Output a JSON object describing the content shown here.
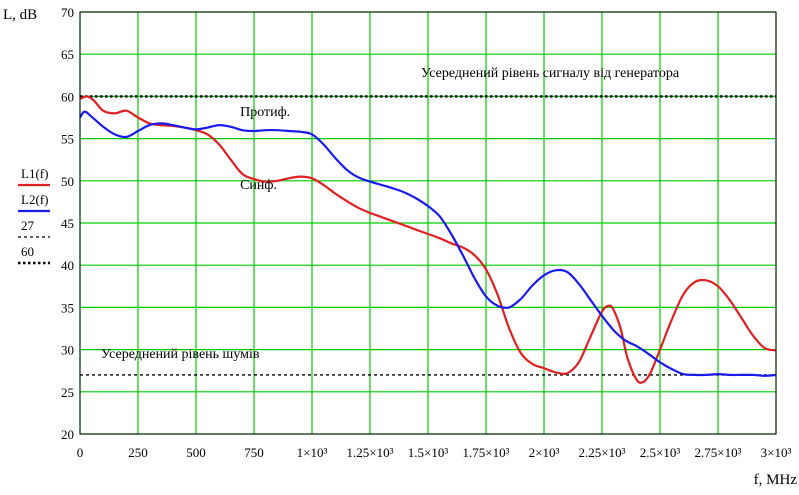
{
  "chart_data": {
    "type": "line",
    "ylabel": "L, dB",
    "xlabel": "f, MHz",
    "xlim": [
      0,
      3000
    ],
    "ylim": [
      20,
      70
    ],
    "grid": true,
    "grid_color": "#00cc00",
    "x_ticks": [
      {
        "value": 0,
        "label": "0"
      },
      {
        "value": 250,
        "label": "250"
      },
      {
        "value": 500,
        "label": "500"
      },
      {
        "value": 750,
        "label": "750"
      },
      {
        "value": 1000,
        "label": "1×10³"
      },
      {
        "value": 1250,
        "label": "1.25×10³"
      },
      {
        "value": 1500,
        "label": "1.5×10³"
      },
      {
        "value": 1750,
        "label": "1.75×10³"
      },
      {
        "value": 2000,
        "label": "2×10³"
      },
      {
        "value": 2250,
        "label": "2.25×10³"
      },
      {
        "value": 2500,
        "label": "2.5×10³"
      },
      {
        "value": 2750,
        "label": "2.75×10³"
      },
      {
        "value": 3000,
        "label": "3×10³"
      }
    ],
    "y_ticks": [
      {
        "value": 20,
        "label": "20"
      },
      {
        "value": 25,
        "label": "25"
      },
      {
        "value": 30,
        "label": "30"
      },
      {
        "value": 35,
        "label": "35"
      },
      {
        "value": 40,
        "label": "40"
      },
      {
        "value": 45,
        "label": "45"
      },
      {
        "value": 50,
        "label": "50"
      },
      {
        "value": 55,
        "label": "55"
      },
      {
        "value": 60,
        "label": "60"
      },
      {
        "value": 65,
        "label": "65"
      },
      {
        "value": 70,
        "label": "70"
      }
    ],
    "series": [
      {
        "name": "L1(f)",
        "color": "#e02020",
        "style": "solid",
        "x": [
          0,
          30,
          60,
          100,
          150,
          200,
          250,
          300,
          350,
          400,
          450,
          500,
          550,
          600,
          650,
          700,
          750,
          800,
          850,
          900,
          950,
          1000,
          1050,
          1100,
          1150,
          1200,
          1250,
          1300,
          1350,
          1400,
          1450,
          1500,
          1550,
          1600,
          1650,
          1700,
          1750,
          1800,
          1850,
          1900,
          1950,
          2000,
          2050,
          2100,
          2150,
          2200,
          2250,
          2280,
          2300,
          2330,
          2360,
          2400,
          2430,
          2460,
          2500,
          2550,
          2600,
          2650,
          2700,
          2750,
          2800,
          2850,
          2900,
          2950,
          3000
        ],
        "values": [
          59.7,
          60.0,
          59.5,
          58.3,
          58.0,
          58.3,
          57.5,
          56.8,
          56.6,
          56.5,
          56.3,
          56.0,
          55.5,
          54.3,
          52.5,
          50.8,
          50.2,
          49.9,
          50.0,
          50.3,
          50.5,
          50.3,
          49.5,
          48.5,
          47.6,
          46.8,
          46.2,
          45.7,
          45.2,
          44.7,
          44.2,
          43.7,
          43.2,
          42.6,
          42.1,
          41.2,
          39.5,
          36.5,
          32.5,
          29.6,
          28.3,
          27.8,
          27.3,
          27.2,
          28.5,
          31.5,
          34.5,
          35.2,
          34.7,
          32.5,
          29.0,
          26.4,
          26.2,
          27.3,
          30.0,
          33.5,
          36.5,
          38.0,
          38.2,
          37.5,
          35.9,
          33.8,
          31.7,
          30.2,
          29.9
        ]
      },
      {
        "name": "L2(f)",
        "color": "#1a1aee",
        "style": "solid",
        "x": [
          0,
          20,
          50,
          100,
          150,
          200,
          250,
          300,
          350,
          400,
          450,
          500,
          550,
          600,
          650,
          700,
          750,
          800,
          850,
          900,
          950,
          1000,
          1050,
          1100,
          1150,
          1200,
          1250,
          1300,
          1350,
          1400,
          1450,
          1500,
          1550,
          1600,
          1650,
          1700,
          1750,
          1800,
          1850,
          1900,
          1950,
          2000,
          2050,
          2100,
          2150,
          2200,
          2250,
          2300,
          2350,
          2400,
          2450,
          2500,
          2550,
          2600,
          2650,
          2700,
          2750,
          2800,
          2850,
          2900,
          2950,
          3000
        ],
        "values": [
          57.5,
          58.2,
          57.6,
          56.4,
          55.5,
          55.2,
          55.9,
          56.6,
          56.8,
          56.6,
          56.3,
          56.1,
          56.3,
          56.6,
          56.4,
          56.0,
          55.9,
          56.0,
          56.0,
          55.9,
          55.8,
          55.5,
          54.3,
          52.7,
          51.3,
          50.4,
          49.9,
          49.5,
          49.1,
          48.6,
          47.9,
          47.0,
          45.8,
          43.7,
          41.2,
          38.5,
          36.3,
          35.2,
          35.0,
          36.0,
          37.6,
          38.8,
          39.4,
          39.2,
          37.8,
          35.9,
          34.0,
          32.3,
          31.1,
          30.4,
          29.5,
          28.5,
          27.7,
          27.1,
          27.0,
          27.0,
          27.1,
          27.0,
          27.0,
          27.0,
          26.9,
          27.0
        ]
      },
      {
        "name": "27",
        "color": "#000000",
        "style": "dashed",
        "x": [
          0,
          3000
        ],
        "values": [
          27,
          27
        ]
      },
      {
        "name": "60",
        "color": "#000000",
        "style": "dotted",
        "x": [
          0,
          3000
        ],
        "values": [
          60,
          60
        ]
      }
    ],
    "annotations": [
      {
        "text": "Усереднений рівень сигналу від генератора",
        "x": 1470,
        "y": 62.3
      },
      {
        "text": "Протиф.",
        "x": 690,
        "y": 57.7
      },
      {
        "text": "Синф.",
        "x": 690,
        "y": 49.0
      },
      {
        "text": "Усереднений рівень шумів",
        "x": 90,
        "y": 29.0
      }
    ]
  }
}
